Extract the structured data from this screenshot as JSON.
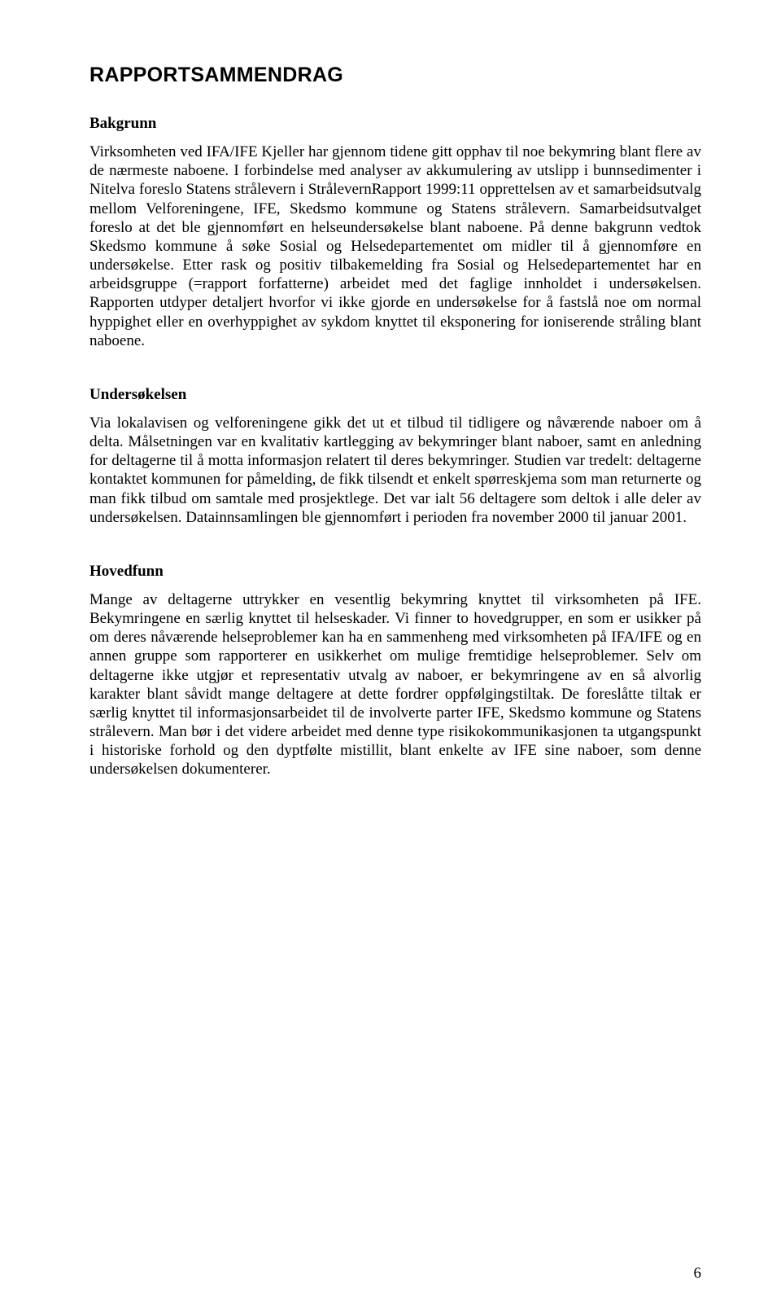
{
  "page": {
    "title": "RAPPORTSAMMENDRAG",
    "number": "6"
  },
  "sections": {
    "bakgrunn": {
      "heading": "Bakgrunn",
      "body": "Virksomheten ved IFA/IFE Kjeller har gjennom tidene gitt opphav til noe bekymring blant flere av de nærmeste naboene. I forbindelse med analyser av akkumulering av utslipp i bunnsedimenter i Nitelva foreslo Statens strålevern i StrålevernRapport 1999:11 opprettelsen av et samarbeidsutvalg mellom Velforeningene, IFE, Skedsmo kommune og Statens strålevern. Samarbeidsutvalget foreslo at det ble gjennomført en helseundersøkelse blant naboene. På denne bakgrunn vedtok Skedsmo kommune å søke Sosial og Helsedepartementet om midler til å gjennomføre en undersøkelse. Etter rask og positiv tilbakemelding fra Sosial og Helsedepartementet har en arbeidsgruppe (=rapport forfatterne) arbeidet med det faglige innholdet i undersøkelsen. Rapporten utdyper detaljert hvorfor vi ikke gjorde en undersøkelse for å fastslå noe om normal hyppighet eller en overhyppighet av sykdom knyttet til eksponering for ioniserende stråling blant naboene."
    },
    "undersokelsen": {
      "heading": "Undersøkelsen",
      "body": "Via lokalavisen og velforeningene gikk det ut et tilbud til tidligere og nåværende naboer om å delta. Målsetningen var en kvalitativ kartlegging av bekymringer blant naboer, samt en anledning for deltagerne til å motta informasjon relatert til deres bekymringer. Studien var tredelt: deltagerne kontaktet kommunen for påmelding, de fikk tilsendt et enkelt spørreskjema som man returnerte og man fikk tilbud om samtale med prosjektlege. Det var ialt 56 deltagere som deltok i alle deler av undersøkelsen. Datainnsamlingen ble gjennomført i perioden fra november 2000 til januar 2001."
    },
    "hovedfunn": {
      "heading": "Hovedfunn",
      "body": "Mange av deltagerne uttrykker en vesentlig bekymring knyttet til virksomheten på IFE. Bekymringene en særlig knyttet til helseskader. Vi finner to hovedgrupper, en som er usikker på om deres nåværende helseproblemer kan ha en sammenheng med virksomheten på IFA/IFE og en annen gruppe som rapporterer en usikkerhet om mulige fremtidige helseproblemer. Selv om deltagerne ikke utgjør et representativ utvalg av naboer, er bekymringene av en så alvorlig karakter blant såvidt mange deltagere at dette fordrer oppfølgingstiltak. De foreslåtte tiltak er særlig knyttet til informasjonsarbeidet til de involverte parter IFE, Skedsmo kommune og Statens strålevern. Man bør i det videre arbeidet med denne type risikokommunikasjonen ta utgangspunkt i historiske forhold og den dyptfølte mistillit, blant enkelte av IFE sine naboer, som denne undersøkelsen dokumenterer."
    }
  }
}
